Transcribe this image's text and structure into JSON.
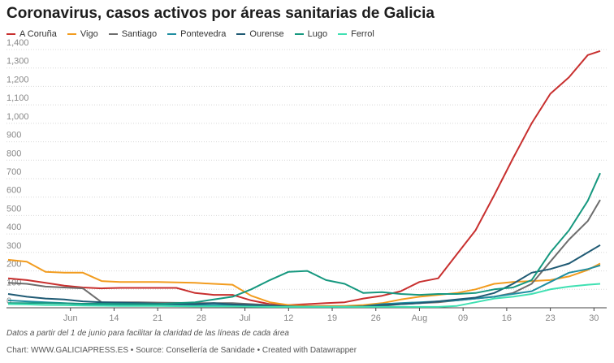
{
  "chart_data": {
    "type": "line",
    "title": "Coronavirus, casos activos por áreas sanitarias de Galicia",
    "notes": "Datos a partir del 1 de junio para facilitar la claridad de las líneas de cada área",
    "source": "Chart: WWW.GALICIAPRESS.ES • Source: Consellería de Sanidade • Created with Datawrapper",
    "x": [
      "05-28",
      "05-31",
      "06-03",
      "06-06",
      "06-09",
      "06-12",
      "06-15",
      "06-18",
      "06-21",
      "06-24",
      "06-27",
      "06-30",
      "07-03",
      "07-06",
      "07-09",
      "07-12",
      "07-15",
      "07-18",
      "07-21",
      "07-24",
      "07-27",
      "07-30",
      "08-02",
      "08-05",
      "08-08",
      "08-11",
      "08-14",
      "08-17",
      "08-20",
      "08-23",
      "08-26",
      "08-29",
      "08-31"
    ],
    "xticks": [
      {
        "value": "06-07",
        "label": "Jun"
      },
      {
        "value": "06-14",
        "label": "14"
      },
      {
        "value": "06-21",
        "label": "21"
      },
      {
        "value": "06-28",
        "label": "28"
      },
      {
        "value": "07-05",
        "label": "Jul"
      },
      {
        "value": "07-12",
        "label": "12"
      },
      {
        "value": "07-19",
        "label": "19"
      },
      {
        "value": "07-26",
        "label": "26"
      },
      {
        "value": "08-02",
        "label": "Aug"
      },
      {
        "value": "08-09",
        "label": "09"
      },
      {
        "value": "08-16",
        "label": "16"
      },
      {
        "value": "08-23",
        "label": "23"
      },
      {
        "value": "08-30",
        "label": "30"
      }
    ],
    "ylim": [
      0,
      1400
    ],
    "yticks": [
      0,
      100,
      200,
      300,
      400,
      500,
      600,
      700,
      800,
      900,
      {
        "value": 1000,
        "label": "1,000"
      },
      {
        "value": 1100,
        "label": "1,100"
      },
      {
        "value": 1200,
        "label": "1,200"
      },
      {
        "value": 1300,
        "label": "1,300"
      },
      {
        "value": 1400,
        "label": "1,400"
      }
    ],
    "grid": true,
    "series": [
      {
        "name": "A Coruña",
        "color": "#c8302f",
        "values": [
          160,
          150,
          135,
          120,
          110,
          105,
          108,
          108,
          108,
          108,
          80,
          70,
          70,
          40,
          20,
          15,
          20,
          25,
          30,
          50,
          65,
          90,
          140,
          160,
          290,
          420,
          610,
          810,
          1000,
          1160,
          1250,
          1370,
          1392
        ]
      },
      {
        "name": "Vigo",
        "color": "#f29c1f",
        "values": [
          260,
          250,
          195,
          190,
          190,
          145,
          140,
          140,
          140,
          138,
          135,
          130,
          125,
          65,
          30,
          15,
          10,
          10,
          10,
          15,
          25,
          45,
          60,
          70,
          80,
          100,
          130,
          140,
          145,
          150,
          170,
          205,
          240
        ]
      },
      {
        "name": "Santiago",
        "color": "#6d6d6d",
        "values": [
          135,
          130,
          115,
          110,
          105,
          30,
          30,
          30,
          28,
          27,
          26,
          25,
          25,
          20,
          15,
          8,
          5,
          5,
          5,
          5,
          10,
          20,
          25,
          30,
          40,
          50,
          60,
          80,
          130,
          250,
          370,
          470,
          585
        ]
      },
      {
        "name": "Pontevedra",
        "color": "#1f8ea1",
        "values": [
          40,
          35,
          30,
          25,
          20,
          18,
          16,
          15,
          15,
          15,
          15,
          15,
          15,
          12,
          10,
          8,
          6,
          5,
          5,
          8,
          20,
          25,
          30,
          35,
          40,
          50,
          60,
          75,
          90,
          140,
          190,
          210,
          230
        ]
      },
      {
        "name": "Ourense",
        "color": "#1f5a74",
        "values": [
          75,
          60,
          50,
          45,
          35,
          30,
          28,
          25,
          22,
          21,
          20,
          25,
          18,
          15,
          10,
          7,
          5,
          5,
          5,
          8,
          15,
          20,
          25,
          35,
          45,
          55,
          80,
          130,
          190,
          210,
          240,
          300,
          340
        ]
      },
      {
        "name": "Lugo",
        "color": "#16987f",
        "values": [
          25,
          25,
          25,
          24,
          22,
          22,
          21,
          20,
          20,
          25,
          30,
          45,
          60,
          100,
          150,
          195,
          200,
          150,
          130,
          80,
          85,
          75,
          70,
          75,
          75,
          80,
          100,
          110,
          150,
          300,
          420,
          580,
          730
        ]
      },
      {
        "name": "Ferrol",
        "color": "#3fe0b2",
        "values": [
          20,
          18,
          15,
          14,
          12,
          11,
          10,
          10,
          10,
          9,
          8,
          8,
          7,
          6,
          5,
          5,
          5,
          5,
          5,
          5,
          5,
          5,
          5,
          5,
          10,
          30,
          50,
          60,
          75,
          100,
          115,
          125,
          130
        ]
      }
    ]
  }
}
